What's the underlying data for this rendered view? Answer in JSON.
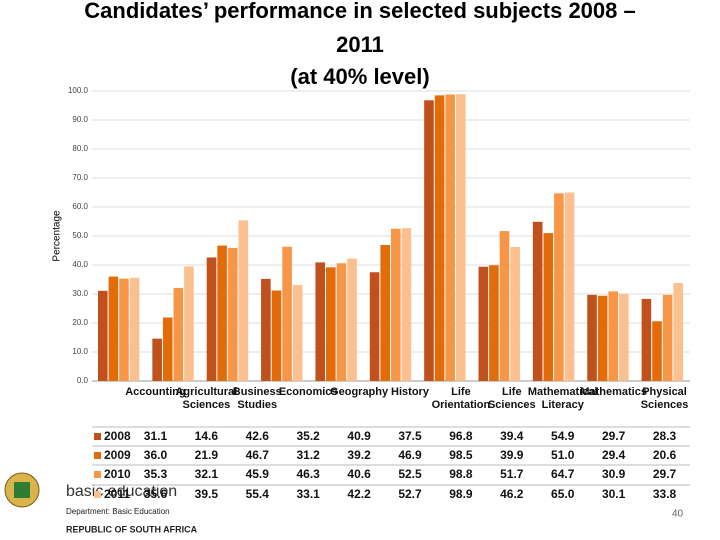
{
  "chart_data": {
    "type": "bar",
    "title": [
      "Candidates’ performance in selected subjects 2008 –",
      "2011",
      "(at 40% level)"
    ],
    "y_label": "Percentage",
    "categories": [
      "Accounting",
      "Agricultural Sciences",
      "Business Studies",
      "Economics",
      "Geography",
      "History",
      "Life Orientation",
      "Life Sciences",
      "Mathematical Literacy",
      "Mathematics",
      "Physical Sciences"
    ],
    "series": [
      {
        "name": "2008",
        "color": "#c0501c",
        "values": [
          31.1,
          14.6,
          42.6,
          35.2,
          40.9,
          37.5,
          96.8,
          39.4,
          54.9,
          29.7,
          28.3
        ],
        "value_labels": [
          "31.1",
          "14.6",
          "42.6",
          "35.2",
          "40.9",
          "37.5",
          "96.8",
          "39.4",
          "54.9",
          "29.7",
          "28.3"
        ]
      },
      {
        "name": "2009",
        "color": "#e36c0a",
        "values": [
          36.0,
          21.9,
          46.7,
          31.2,
          39.2,
          46.9,
          98.5,
          39.9,
          51.0,
          29.4,
          20.6
        ],
        "value_labels": [
          "36.0",
          "21.9",
          "46.7",
          "31.2",
          "39.2",
          "46.9",
          "98.5",
          "39.9",
          "51.0",
          "29.4",
          "20.6"
        ]
      },
      {
        "name": "2010",
        "color": "#f79646",
        "values": [
          35.3,
          32.1,
          45.9,
          46.3,
          40.6,
          52.5,
          98.8,
          51.7,
          64.7,
          30.9,
          29.7
        ],
        "value_labels": [
          "35.3",
          "32.1",
          "45.9",
          "46.3",
          "40.6",
          "52.5",
          "98.8",
          "51.7",
          "64.7",
          "30.9",
          "29.7"
        ]
      },
      {
        "name": "2011",
        "color": "#fac090",
        "values": [
          35.6,
          39.5,
          55.4,
          33.1,
          42.2,
          52.7,
          98.9,
          46.2,
          65.0,
          30.1,
          33.8
        ],
        "value_labels": [
          "35.6",
          "39.5",
          "55.4",
          "33.1",
          "42.2",
          "52.7",
          "98.9",
          "46.2",
          "65.0",
          "30.1",
          "33.8"
        ]
      }
    ],
    "ylim": [
      0,
      100
    ],
    "yticks": [
      {
        "value": 0,
        "label": "0.0"
      },
      {
        "value": 10,
        "label": "10.0"
      },
      {
        "value": 20,
        "label": "20.0"
      },
      {
        "value": 30,
        "label": "30.0"
      },
      {
        "value": 40,
        "label": "40.0"
      },
      {
        "value": 50,
        "label": "50.0"
      },
      {
        "value": 60,
        "label": "60.0"
      },
      {
        "value": 70,
        "label": "70.0"
      },
      {
        "value": 80,
        "label": "80.0"
      },
      {
        "value": 90,
        "label": "90.0"
      },
      {
        "value": 100,
        "label": "100.0"
      }
    ],
    "grid": true
  },
  "footer": {
    "brand": "basic education",
    "department": "Department: Basic Education",
    "country": "REPUBLIC OF SOUTH AFRICA",
    "page_number": "40"
  }
}
